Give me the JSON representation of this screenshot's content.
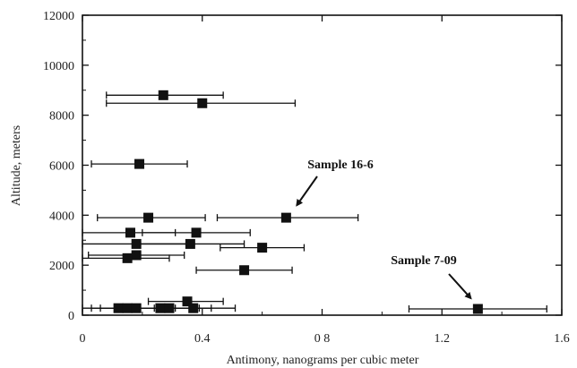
{
  "chart_data": {
    "type": "scatter",
    "title": "",
    "xlabel": "Antimony, nanograms per cubic meter",
    "ylabel": "Altitude, meters",
    "xlim": [
      0,
      1.6
    ],
    "ylim": [
      0,
      12000
    ],
    "x_ticks": [
      0,
      0.4,
      0.8,
      1.2,
      1.6
    ],
    "x_tick_labels": [
      "0",
      "0.4",
      "0 8",
      "1.2",
      "1.6"
    ],
    "y_ticks": [
      0,
      2000,
      4000,
      6000,
      8000,
      10000,
      12000
    ],
    "y_tick_labels": [
      "0",
      "2000",
      "4000",
      "6000",
      "8000",
      "10000",
      "12000"
    ],
    "grid": false,
    "legend": "none",
    "marker": "square",
    "marker_color": "#111111",
    "points": [
      {
        "x": 0.27,
        "y": 8800,
        "xerr_low": 0.08,
        "xerr_high": 0.47
      },
      {
        "x": 0.4,
        "y": 8480,
        "xerr_low": 0.08,
        "xerr_high": 0.71
      },
      {
        "x": 0.19,
        "y": 6050,
        "xerr_low": 0.03,
        "xerr_high": 0.35
      },
      {
        "x": 0.22,
        "y": 3900,
        "xerr_low": 0.05,
        "xerr_high": 0.41
      },
      {
        "x": 0.68,
        "y": 3900,
        "xerr_low": 0.45,
        "xerr_high": 0.92
      },
      {
        "x": 0.16,
        "y": 3300,
        "xerr_low": 0.0,
        "xerr_high": 0.31
      },
      {
        "x": 0.38,
        "y": 3300,
        "xerr_low": 0.2,
        "xerr_high": 0.56
      },
      {
        "x": 0.18,
        "y": 2850,
        "xerr_low": 0.0,
        "xerr_high": 0.35
      },
      {
        "x": 0.36,
        "y": 2850,
        "xerr_low": 0.17,
        "xerr_high": 0.54
      },
      {
        "x": 0.6,
        "y": 2700,
        "xerr_low": 0.46,
        "xerr_high": 0.74
      },
      {
        "x": 0.18,
        "y": 2400,
        "xerr_low": 0.02,
        "xerr_high": 0.34
      },
      {
        "x": 0.15,
        "y": 2280,
        "xerr_low": 0.0,
        "xerr_high": 0.29
      },
      {
        "x": 0.54,
        "y": 1800,
        "xerr_low": 0.38,
        "xerr_high": 0.7
      },
      {
        "x": 0.35,
        "y": 550,
        "xerr_low": 0.22,
        "xerr_high": 0.47
      },
      {
        "x": 0.12,
        "y": 280,
        "xerr_low": 0.0,
        "xerr_high": 0.25
      },
      {
        "x": 0.15,
        "y": 280,
        "xerr_low": 0.03,
        "xerr_high": 0.28
      },
      {
        "x": 0.18,
        "y": 280,
        "xerr_low": 0.06,
        "xerr_high": 0.31
      },
      {
        "x": 0.26,
        "y": 280,
        "xerr_low": 0.13,
        "xerr_high": 0.39
      },
      {
        "x": 0.29,
        "y": 280,
        "xerr_low": 0.15,
        "xerr_high": 0.43
      },
      {
        "x": 0.37,
        "y": 280,
        "xerr_low": 0.24,
        "xerr_high": 0.51
      },
      {
        "x": 1.32,
        "y": 250,
        "xerr_low": 1.09,
        "xerr_high": 1.55
      }
    ],
    "annotations": [
      {
        "text": "Sample 16-6",
        "point_x": 0.68,
        "point_y": 3900
      },
      {
        "text": "Sample 7-09",
        "point_x": 1.32,
        "point_y": 250
      }
    ]
  }
}
